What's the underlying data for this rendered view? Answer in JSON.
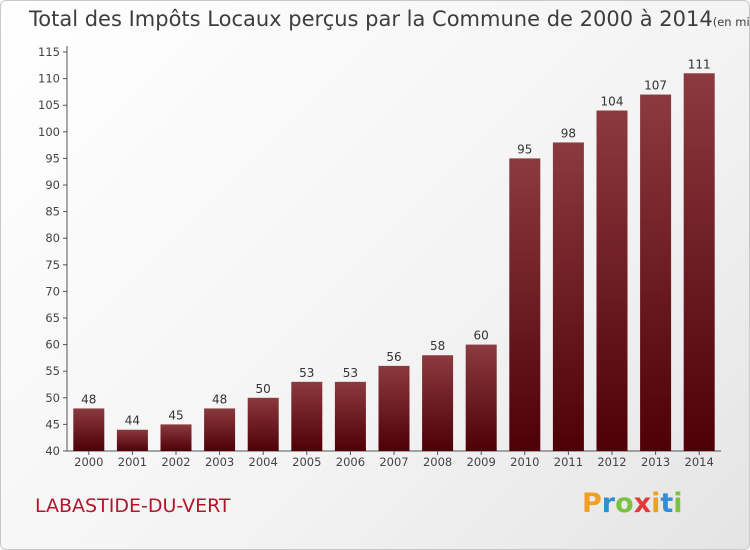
{
  "chart_data": {
    "type": "bar",
    "title": "Total des Impôts Locaux perçus par la Commune de 2000 à 2014",
    "title_unit": "(en milliers d'€)",
    "categories": [
      "2000",
      "2001",
      "2002",
      "2003",
      "2004",
      "2005",
      "2006",
      "2007",
      "2008",
      "2009",
      "2010",
      "2011",
      "2012",
      "2013",
      "2014"
    ],
    "values": [
      48,
      44,
      45,
      48,
      50,
      53,
      53,
      56,
      58,
      60,
      95,
      98,
      104,
      107,
      111
    ],
    "ylim": [
      40,
      115
    ],
    "yticks": [
      40,
      45,
      50,
      55,
      60,
      65,
      70,
      75,
      80,
      85,
      90,
      95,
      100,
      105,
      110,
      115
    ],
    "xlabel": "",
    "ylabel": "",
    "grid": false,
    "bar_color_light": "#8b3a3f",
    "bar_color_dark": "#4e0006"
  },
  "commune": "LABASTIDE-DU-VERT",
  "logo": {
    "letters": [
      "P",
      "r",
      "o",
      "x",
      "i",
      "t",
      "i"
    ],
    "colors": [
      "#f0a020",
      "#2e8fd8",
      "#7cc242",
      "#e23a3a",
      "#f0a020",
      "#2e8fd8",
      "#7cc242"
    ]
  }
}
